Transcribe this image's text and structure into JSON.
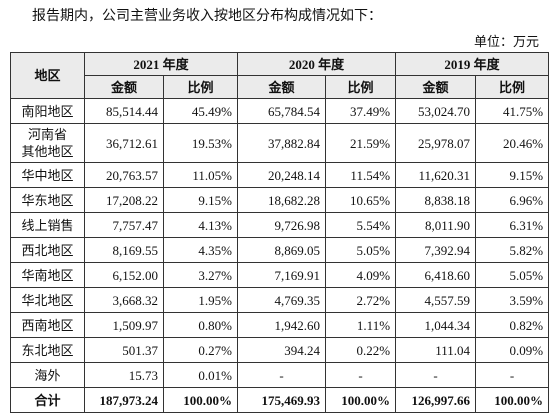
{
  "intro": "报告期内，公司主营业务收入按地区分布构成情况如下：",
  "unit": "单位：万元",
  "table": {
    "region_header": "地区",
    "years": [
      "2021 年度",
      "2020 年度",
      "2019 年度"
    ],
    "subheaders": [
      "金额",
      "比例",
      "金额",
      "比例",
      "金额",
      "比例"
    ],
    "rows": [
      [
        "南阳地区",
        "85,514.44",
        "45.49%",
        "65,784.54",
        "37.49%",
        "53,024.70",
        "41.75%"
      ],
      [
        "河南省\n其他地区",
        "36,712.61",
        "19.53%",
        "37,882.84",
        "21.59%",
        "25,978.07",
        "20.46%"
      ],
      [
        "华中地区",
        "20,763.57",
        "11.05%",
        "20,248.14",
        "11.54%",
        "11,620.31",
        "9.15%"
      ],
      [
        "华东地区",
        "17,208.22",
        "9.15%",
        "18,682.28",
        "10.65%",
        "8,838.18",
        "6.96%"
      ],
      [
        "线上销售",
        "7,757.47",
        "4.13%",
        "9,726.98",
        "5.54%",
        "8,011.90",
        "6.31%"
      ],
      [
        "西北地区",
        "8,169.55",
        "4.35%",
        "8,869.05",
        "5.05%",
        "7,392.94",
        "5.82%"
      ],
      [
        "华南地区",
        "6,152.00",
        "3.27%",
        "7,169.91",
        "4.09%",
        "6,418.60",
        "5.05%"
      ],
      [
        "华北地区",
        "3,668.32",
        "1.95%",
        "4,769.35",
        "2.72%",
        "4,557.59",
        "3.59%"
      ],
      [
        "西南地区",
        "1,509.97",
        "0.80%",
        "1,942.60",
        "1.11%",
        "1,044.34",
        "0.82%"
      ],
      [
        "东北地区",
        "501.37",
        "0.27%",
        "394.24",
        "0.22%",
        "111.04",
        "0.09%"
      ],
      [
        "海外",
        "15.73",
        "0.01%",
        "-",
        "-",
        "-",
        "-"
      ]
    ],
    "total": [
      "合计",
      "187,973.24",
      "100.00%",
      "175,469.93",
      "100.00%",
      "126,997.66",
      "100.00%"
    ]
  }
}
